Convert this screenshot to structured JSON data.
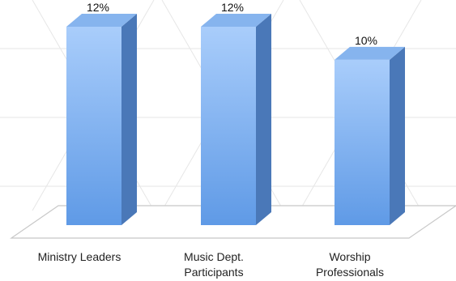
{
  "chart_data": {
    "type": "bar",
    "style": "3d-column",
    "categories": [
      "Ministry Leaders",
      "Music Dept. Participants",
      "Worship Professionals"
    ],
    "category_label_lines": [
      [
        "Ministry Leaders"
      ],
      [
        "Music Dept.",
        "Participants"
      ],
      [
        "Worship",
        "Professionals"
      ]
    ],
    "values": [
      12,
      12,
      10
    ],
    "data_labels": [
      "12%",
      "12%",
      "10%"
    ],
    "unit": "%",
    "title": "",
    "xlabel": "",
    "ylabel": "",
    "ylim": [
      0,
      12
    ],
    "grid": false,
    "legend": "none",
    "colors": {
      "bar_front_top": "#a9cdfb",
      "bar_front_bottom": "#5f9ae6",
      "bar_side": "#4a78b8",
      "bar_top": "#86b4ee",
      "floor_stroke": "#c8c8c8",
      "background_pattern": "#e6e6e6"
    }
  }
}
